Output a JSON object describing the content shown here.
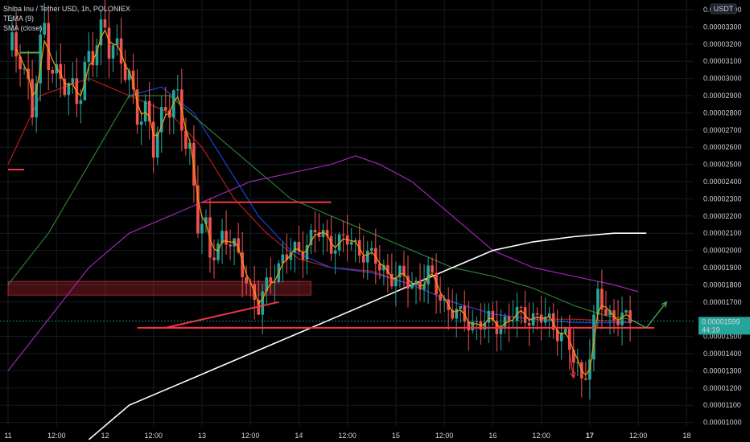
{
  "header": {
    "title": "Shiba Inu / Tether USD, 1h, POLONIEX",
    "indicators": [
      "TEMA (9)",
      "SMA (close)"
    ]
  },
  "currency_badge": "USDT",
  "price_badge": {
    "price": "0.00001599",
    "countdown": "44:19"
  },
  "colors": {
    "background": "#000000",
    "up": "#26a69a",
    "down": "#ef5350",
    "drawing": "#f23645",
    "tema": "#ff9800",
    "sma_20": "#b71c1c",
    "sma_blue": "#1e3fd8",
    "sma_green": "#2e7d32",
    "sma_purple": "#9c27b0",
    "sma_white": "#ffffff",
    "arrow": "#4caf50"
  },
  "chart_data": {
    "type": "candlestick",
    "title": "Shiba Inu / Tether USD, 1h, POLONIEX",
    "ylim": [
      9e-07,
      3.5e-06
    ],
    "yticks": [
      "0.00003400",
      "0.00003300",
      "0.00003200",
      "0.00003100",
      "0.00003000",
      "0.00002900",
      "0.00002800",
      "0.00002700",
      "0.00002600",
      "0.00002500",
      "0.00002400",
      "0.00002300",
      "0.00002200",
      "0.00002100",
      "0.00002000",
      "0.00001900",
      "0.00001800",
      "0.00001700",
      "0.00001500",
      "0.00001400",
      "0.00001300",
      "0.00001200",
      "0.00001100",
      "0.00001000"
    ],
    "ytick_values": [
      3.4e-06,
      3.3e-06,
      3.2e-06,
      3.1e-06,
      3e-06,
      2.9e-06,
      2.8e-06,
      2.7e-06,
      2.6e-06,
      2.5e-06,
      2.4e-06,
      2.3e-06,
      2.2e-06,
      2.1e-06,
      2e-06,
      1.9e-06,
      1.8e-06,
      1.7e-06,
      1.5e-06,
      1.4e-06,
      1.3e-06,
      1.2e-06,
      1.1e-06,
      1e-06
    ],
    "xticks": [
      {
        "label": "11",
        "t": 0,
        "bold": false
      },
      {
        "label": "12:00",
        "t": 12,
        "bold": false
      },
      {
        "label": "12",
        "t": 24,
        "bold": false
      },
      {
        "label": "12:00",
        "t": 36,
        "bold": false
      },
      {
        "label": "13",
        "t": 48,
        "bold": false
      },
      {
        "label": "12:00",
        "t": 60,
        "bold": false
      },
      {
        "label": "14",
        "t": 72,
        "bold": false
      },
      {
        "label": "12:00",
        "t": 84,
        "bold": false
      },
      {
        "label": "15",
        "t": 96,
        "bold": false
      },
      {
        "label": "12:00",
        "t": 108,
        "bold": false
      },
      {
        "label": "16",
        "t": 120,
        "bold": false
      },
      {
        "label": "12:00",
        "t": 132,
        "bold": false
      },
      {
        "label": "17",
        "t": 144,
        "bold": true
      },
      {
        "label": "12:00",
        "t": 156,
        "bold": false
      },
      {
        "label": "18",
        "t": 168,
        "bold": false
      }
    ],
    "close_anchors": [
      [
        0,
        3.1e-06
      ],
      [
        3,
        3.2e-06
      ],
      [
        6,
        2.8e-06
      ],
      [
        9,
        3.3e-06
      ],
      [
        12,
        3e-06
      ],
      [
        15,
        2.9e-06
      ],
      [
        18,
        3e-06
      ],
      [
        21,
        3.1e-06
      ],
      [
        24,
        3.35e-06
      ],
      [
        27,
        3.1e-06
      ],
      [
        30,
        3e-06
      ],
      [
        33,
        2.8e-06
      ],
      [
        36,
        2.6e-06
      ],
      [
        39,
        2.9e-06
      ],
      [
        42,
        2.8e-06
      ],
      [
        45,
        2.6e-06
      ],
      [
        47,
        2.2e-06
      ],
      [
        50,
        1.95e-06
      ],
      [
        53,
        2.1e-06
      ],
      [
        56,
        2e-06
      ],
      [
        59,
        1.85e-06
      ],
      [
        62,
        1.65e-06
      ],
      [
        65,
        1.85e-06
      ],
      [
        68,
        1.95e-06
      ],
      [
        72,
        2e-06
      ],
      [
        76,
        2.1e-06
      ],
      [
        80,
        2.05e-06
      ],
      [
        84,
        2.05e-06
      ],
      [
        88,
        2e-06
      ],
      [
        92,
        1.9e-06
      ],
      [
        96,
        1.85e-06
      ],
      [
        100,
        1.8e-06
      ],
      [
        104,
        1.85e-06
      ],
      [
        108,
        1.7e-06
      ],
      [
        112,
        1.6e-06
      ],
      [
        116,
        1.58e-06
      ],
      [
        120,
        1.57e-06
      ],
      [
        124,
        1.6e-06
      ],
      [
        128,
        1.63e-06
      ],
      [
        132,
        1.6e-06
      ],
      [
        136,
        1.55e-06
      ],
      [
        138,
        1.5e-06
      ],
      [
        140,
        1.35e-06
      ],
      [
        142,
        1.25e-06
      ],
      [
        144,
        1.4e-06
      ],
      [
        146,
        1.75e-06
      ],
      [
        148,
        1.6e-06
      ],
      [
        150,
        1.65e-06
      ],
      [
        152,
        1.6e-06
      ],
      [
        154,
        1.59e-06
      ]
    ],
    "last_candle_t": 154,
    "sma_series": [
      {
        "key": "sma_20",
        "points": [
          [
            0,
            2.5e-06
          ],
          [
            8,
            2.9e-06
          ],
          [
            20,
            3e-06
          ],
          [
            30,
            2.9e-06
          ],
          [
            40,
            2.8e-06
          ],
          [
            48,
            2.6e-06
          ],
          [
            56,
            2.3e-06
          ],
          [
            64,
            2.1e-06
          ],
          [
            72,
            1.95e-06
          ],
          [
            80,
            1.9e-06
          ],
          [
            90,
            1.88e-06
          ],
          [
            100,
            1.8e-06
          ],
          [
            110,
            1.7e-06
          ],
          [
            120,
            1.63e-06
          ],
          [
            130,
            1.6e-06
          ],
          [
            140,
            1.6e-06
          ],
          [
            150,
            1.59e-06
          ],
          [
            154,
            1.58e-06
          ]
        ]
      },
      {
        "key": "sma_blue",
        "points": [
          [
            30,
            2.9e-06
          ],
          [
            38,
            2.95e-06
          ],
          [
            46,
            2.8e-06
          ],
          [
            54,
            2.5e-06
          ],
          [
            62,
            2.2e-06
          ],
          [
            70,
            2e-06
          ],
          [
            80,
            1.9e-06
          ],
          [
            90,
            1.87e-06
          ],
          [
            100,
            1.8e-06
          ],
          [
            110,
            1.7e-06
          ],
          [
            120,
            1.63e-06
          ],
          [
            130,
            1.6e-06
          ],
          [
            140,
            1.58e-06
          ],
          [
            150,
            1.58e-06
          ],
          [
            154,
            1.58e-06
          ]
        ]
      },
      {
        "key": "sma_green",
        "points": [
          [
            0,
            1.8e-06
          ],
          [
            10,
            2.1e-06
          ],
          [
            20,
            2.5e-06
          ],
          [
            30,
            2.9e-06
          ],
          [
            40,
            2.9e-06
          ],
          [
            50,
            2.7e-06
          ],
          [
            60,
            2.5e-06
          ],
          [
            70,
            2.3e-06
          ],
          [
            80,
            2.2e-06
          ],
          [
            90,
            2.1e-06
          ],
          [
            100,
            2e-06
          ],
          [
            110,
            1.9e-06
          ],
          [
            120,
            1.85e-06
          ],
          [
            130,
            1.78e-06
          ],
          [
            140,
            1.68e-06
          ],
          [
            148,
            1.62e-06
          ],
          [
            154,
            1.6e-06
          ]
        ]
      },
      {
        "key": "sma_purple",
        "points": [
          [
            0,
            1.3e-06
          ],
          [
            10,
            1.6e-06
          ],
          [
            20,
            1.9e-06
          ],
          [
            30,
            2.1e-06
          ],
          [
            40,
            2.2e-06
          ],
          [
            50,
            2.3e-06
          ],
          [
            60,
            2.4e-06
          ],
          [
            70,
            2.45e-06
          ],
          [
            80,
            2.5e-06
          ],
          [
            86,
            2.55e-06
          ],
          [
            92,
            2.5e-06
          ],
          [
            100,
            2.4e-06
          ],
          [
            110,
            2.2e-06
          ],
          [
            120,
            2e-06
          ],
          [
            130,
            1.9e-06
          ],
          [
            140,
            1.85e-06
          ],
          [
            150,
            1.8e-06
          ],
          [
            156,
            1.76e-06
          ]
        ]
      },
      {
        "key": "sma_white",
        "points": [
          [
            20,
            9e-07
          ],
          [
            30,
            1.1e-06
          ],
          [
            40,
            1.2e-06
          ],
          [
            50,
            1.3e-06
          ],
          [
            60,
            1.4e-06
          ],
          [
            70,
            1.5e-06
          ],
          [
            80,
            1.6e-06
          ],
          [
            90,
            1.7e-06
          ],
          [
            100,
            1.8e-06
          ],
          [
            110,
            1.9e-06
          ],
          [
            120,
            2e-06
          ],
          [
            130,
            2.05e-06
          ],
          [
            140,
            2.08e-06
          ],
          [
            150,
            2.1e-06
          ],
          [
            158,
            2.1e-06
          ]
        ]
      }
    ],
    "drawings": {
      "hlines": [
        {
          "t1": 0,
          "t2": 4,
          "price": 2.47e-06
        },
        {
          "t1": 48,
          "t2": 80,
          "price": 2.28e-06
        },
        {
          "t1": 32,
          "t2": 60,
          "price": 1.55e-06
        },
        {
          "t1": 34,
          "t2": 160,
          "price": 1.55e-06
        }
      ],
      "rays": [
        {
          "t1": 39,
          "t2": 67,
          "p1": 1.55e-06,
          "p2": 1.7e-06
        }
      ],
      "zone": {
        "t1": 0,
        "t2": 75,
        "p1": 1.82e-06,
        "p2": 1.74e-06
      },
      "green_segments": [
        {
          "t1": 3,
          "t2": 8,
          "p1": 3.15e-06,
          "p2": 3.15e-06
        }
      ],
      "arrows": [
        {
          "color_key": "drawing",
          "points": [
            [
              139,
              1.55e-06
            ],
            [
              139,
              1.4e-06
            ],
            [
              140,
              1.26e-06
            ]
          ]
        },
        {
          "color_key": "arrow",
          "points": [
            [
              154,
              1.6e-06
            ],
            [
              158,
              1.55e-06
            ],
            [
              163,
              1.7e-06
            ]
          ]
        }
      ]
    }
  }
}
